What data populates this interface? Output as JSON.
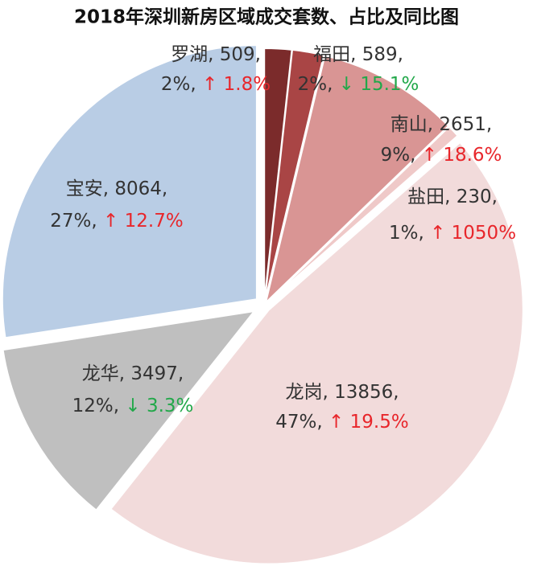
{
  "chart_data": {
    "type": "pie",
    "title": "2018年深圳新房区域成交套数、占比及同比图",
    "categories": [
      "罗湖",
      "福田",
      "南山",
      "盐田",
      "龙岗",
      "龙华",
      "宝安"
    ],
    "values": [
      509,
      589,
      2651,
      230,
      13856,
      3497,
      8064
    ],
    "colors": [
      "#7b2b2b",
      "#a94545",
      "#d99594",
      "#efc9c8",
      "#f2dbdb",
      "#bfbfbf",
      "#b9cde5"
    ],
    "shares": [
      {
        "value": 2,
        "label": "2%"
      },
      {
        "value": 2,
        "label": "2%"
      },
      {
        "value": 9,
        "label": "9%"
      },
      {
        "value": 1,
        "label": "1%"
      },
      {
        "value": 47,
        "label": "47%"
      },
      {
        "value": 12,
        "label": "12%"
      },
      {
        "value": 27,
        "label": "27%"
      }
    ],
    "yoy": [
      {
        "value": 1.8,
        "label": "1.8%"
      },
      {
        "value": -15.1,
        "label": "15.1%"
      },
      {
        "value": 18.6,
        "label": "18.6%"
      },
      {
        "value": 1050,
        "label": "1050%"
      },
      {
        "value": 19.5,
        "label": "19.5%"
      },
      {
        "value": -3.3,
        "label": "3.3%"
      },
      {
        "value": 12.7,
        "label": "12.7%"
      }
    ]
  }
}
